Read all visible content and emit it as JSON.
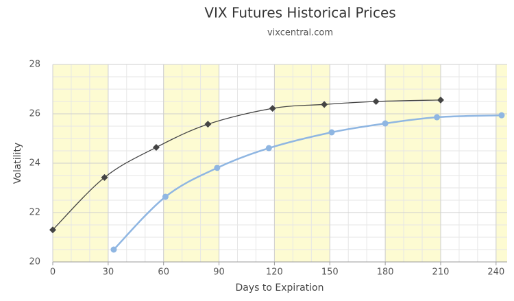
{
  "chart_data": {
    "type": "line",
    "title": "VIX Futures Historical Prices",
    "subtitle": "vixcentral.com",
    "x_label": "Days to Expiration",
    "y_label": "Volatility",
    "xlim": [
      0,
      246
    ],
    "xticks": [
      0,
      30,
      60,
      90,
      120,
      150,
      180,
      210,
      240
    ],
    "ylim": [
      20,
      28
    ],
    "yticks": [
      20,
      22,
      24,
      26,
      28
    ],
    "x_minor": 10,
    "y_minor": 0.5,
    "grid": true,
    "band_color": "#fdfbd2",
    "bands": [
      [
        0,
        30
      ],
      [
        60,
        90
      ],
      [
        120,
        150
      ],
      [
        180,
        210
      ],
      [
        240,
        246
      ]
    ],
    "series": [
      {
        "color": "#444444",
        "marker": "diamond",
        "x": [
          0,
          28,
          56,
          84,
          119,
          147,
          175,
          210
        ],
        "values": [
          21.3,
          23.42,
          24.64,
          25.58,
          26.22,
          26.38,
          26.5,
          26.56
        ]
      },
      {
        "color": "#8fb6e2",
        "marker": "circle",
        "x": [
          33,
          61,
          89,
          117,
          151,
          180,
          208,
          243
        ],
        "values": [
          20.5,
          22.64,
          23.81,
          24.61,
          25.25,
          25.61,
          25.86,
          25.94
        ]
      }
    ]
  }
}
